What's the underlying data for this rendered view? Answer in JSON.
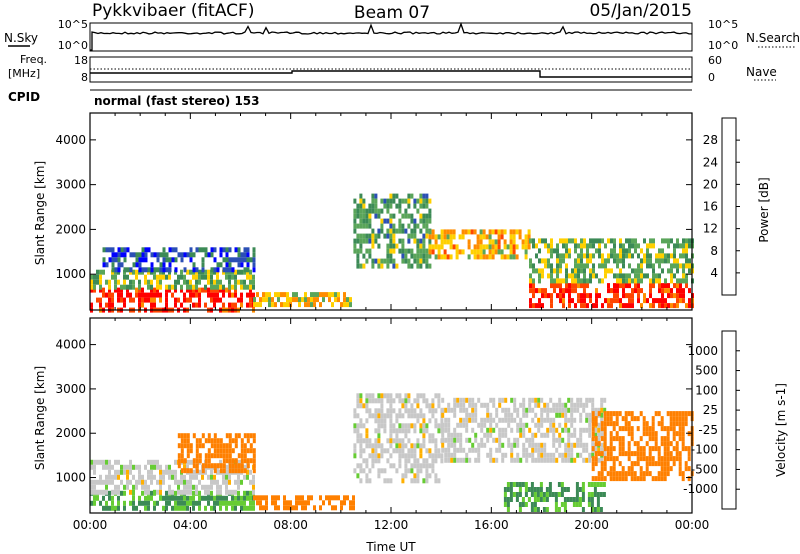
{
  "header": {
    "station": "Pykkvibaer (fitACF)",
    "beam": "Beam 07",
    "date": "05/Jan/2015"
  },
  "strip_nsky": {
    "left_label": "N.Sky",
    "left_ticks": [
      "10^5",
      "10^0"
    ],
    "right_ticks": [
      "10^5",
      "10^0"
    ],
    "right_label": "N.Search"
  },
  "strip_freq": {
    "left_label_1": "Freq.",
    "left_label_2": "[MHz]",
    "left_ticks": [
      "18",
      "8"
    ],
    "right_ticks": [
      "60",
      "0"
    ],
    "right_label": "Nave"
  },
  "cpid": {
    "label": "CPID",
    "value": "normal (fast stereo) 153"
  },
  "colors": {
    "power": [
      "#0000ff",
      "#2b4fb5",
      "#3c8a56",
      "#5aa55a",
      "#ffd000",
      "#ff8c00",
      "#ff4500",
      "#ff0000"
    ],
    "velocity": [
      "#2040c0",
      "#2f6fc0",
      "#3c8a56",
      "#66cc33",
      "#c8c8c8",
      "#ffb000",
      "#ff8000",
      "#ff4000",
      "#ff0000"
    ]
  },
  "chart_data": [
    {
      "type": "heatmap",
      "name": "power",
      "ylabel": "Slant Range [km]",
      "yticks": [
        "1000",
        "2000",
        "3000",
        "4000"
      ],
      "ylim": [
        200,
        4600
      ],
      "xlim": [
        "00:00",
        "24:00"
      ],
      "colorbar": {
        "label": "Power [dB]",
        "ticks": [
          "4",
          "8",
          "12",
          "16",
          "20",
          "24",
          "28"
        ],
        "range": [
          0,
          32
        ]
      },
      "regions": [
        {
          "t0": 0.0,
          "t1": 6.5,
          "r0": 250,
          "r1": 700,
          "value": 28
        },
        {
          "t0": 0.0,
          "t1": 6.5,
          "r0": 700,
          "r1": 1100,
          "value": 14
        },
        {
          "t0": 0.5,
          "t1": 6.5,
          "r0": 1100,
          "r1": 1600,
          "value": 6
        },
        {
          "t0": 6.5,
          "t1": 10.5,
          "r0": 300,
          "r1": 600,
          "value": 18
        },
        {
          "t0": 10.5,
          "t1": 13.5,
          "r0": 1200,
          "r1": 2800,
          "value": 12
        },
        {
          "t0": 13.5,
          "t1": 17.5,
          "r0": 1400,
          "r1": 2000,
          "value": 20
        },
        {
          "t0": 17.5,
          "t1": 24.0,
          "r0": 250,
          "r1": 800,
          "value": 28
        },
        {
          "t0": 17.5,
          "t1": 24.0,
          "r0": 800,
          "r1": 1800,
          "value": 14
        }
      ]
    },
    {
      "type": "heatmap",
      "name": "velocity",
      "ylabel": "Slant Range [km]",
      "yticks": [
        "1000",
        "2000",
        "3000",
        "4000"
      ],
      "ylim": [
        200,
        4600
      ],
      "xlim": [
        "00:00",
        "24:00"
      ],
      "xlabel": "Time UT",
      "xticks": [
        "00:00",
        "04:00",
        "08:00",
        "12:00",
        "16:00",
        "20:00",
        "00:00"
      ],
      "colorbar": {
        "label": "Velocity [m s-1]",
        "ticks": [
          "1000",
          "500",
          "100",
          "25",
          "-25",
          "-100",
          "-500",
          "-1000"
        ]
      },
      "regions": [
        {
          "t0": 0.0,
          "t1": 6.5,
          "r0": 250,
          "r1": 700,
          "value": 100
        },
        {
          "t0": 0.0,
          "t1": 6.5,
          "r0": 700,
          "r1": 1400,
          "value": 0
        },
        {
          "t0": 3.5,
          "t1": 6.5,
          "r0": 1200,
          "r1": 2000,
          "value": -300
        },
        {
          "t0": 6.5,
          "t1": 10.5,
          "r0": 300,
          "r1": 600,
          "value": -150
        },
        {
          "t0": 10.5,
          "t1": 14.0,
          "r0": 900,
          "r1": 2900,
          "value": 0
        },
        {
          "t0": 14.0,
          "t1": 20.5,
          "r0": 1400,
          "r1": 2800,
          "value": 0
        },
        {
          "t0": 16.5,
          "t1": 20.5,
          "r0": 300,
          "r1": 900,
          "value": 100
        },
        {
          "t0": 20.0,
          "t1": 24.0,
          "r0": 1000,
          "r1": 2500,
          "value": -300
        }
      ]
    }
  ]
}
